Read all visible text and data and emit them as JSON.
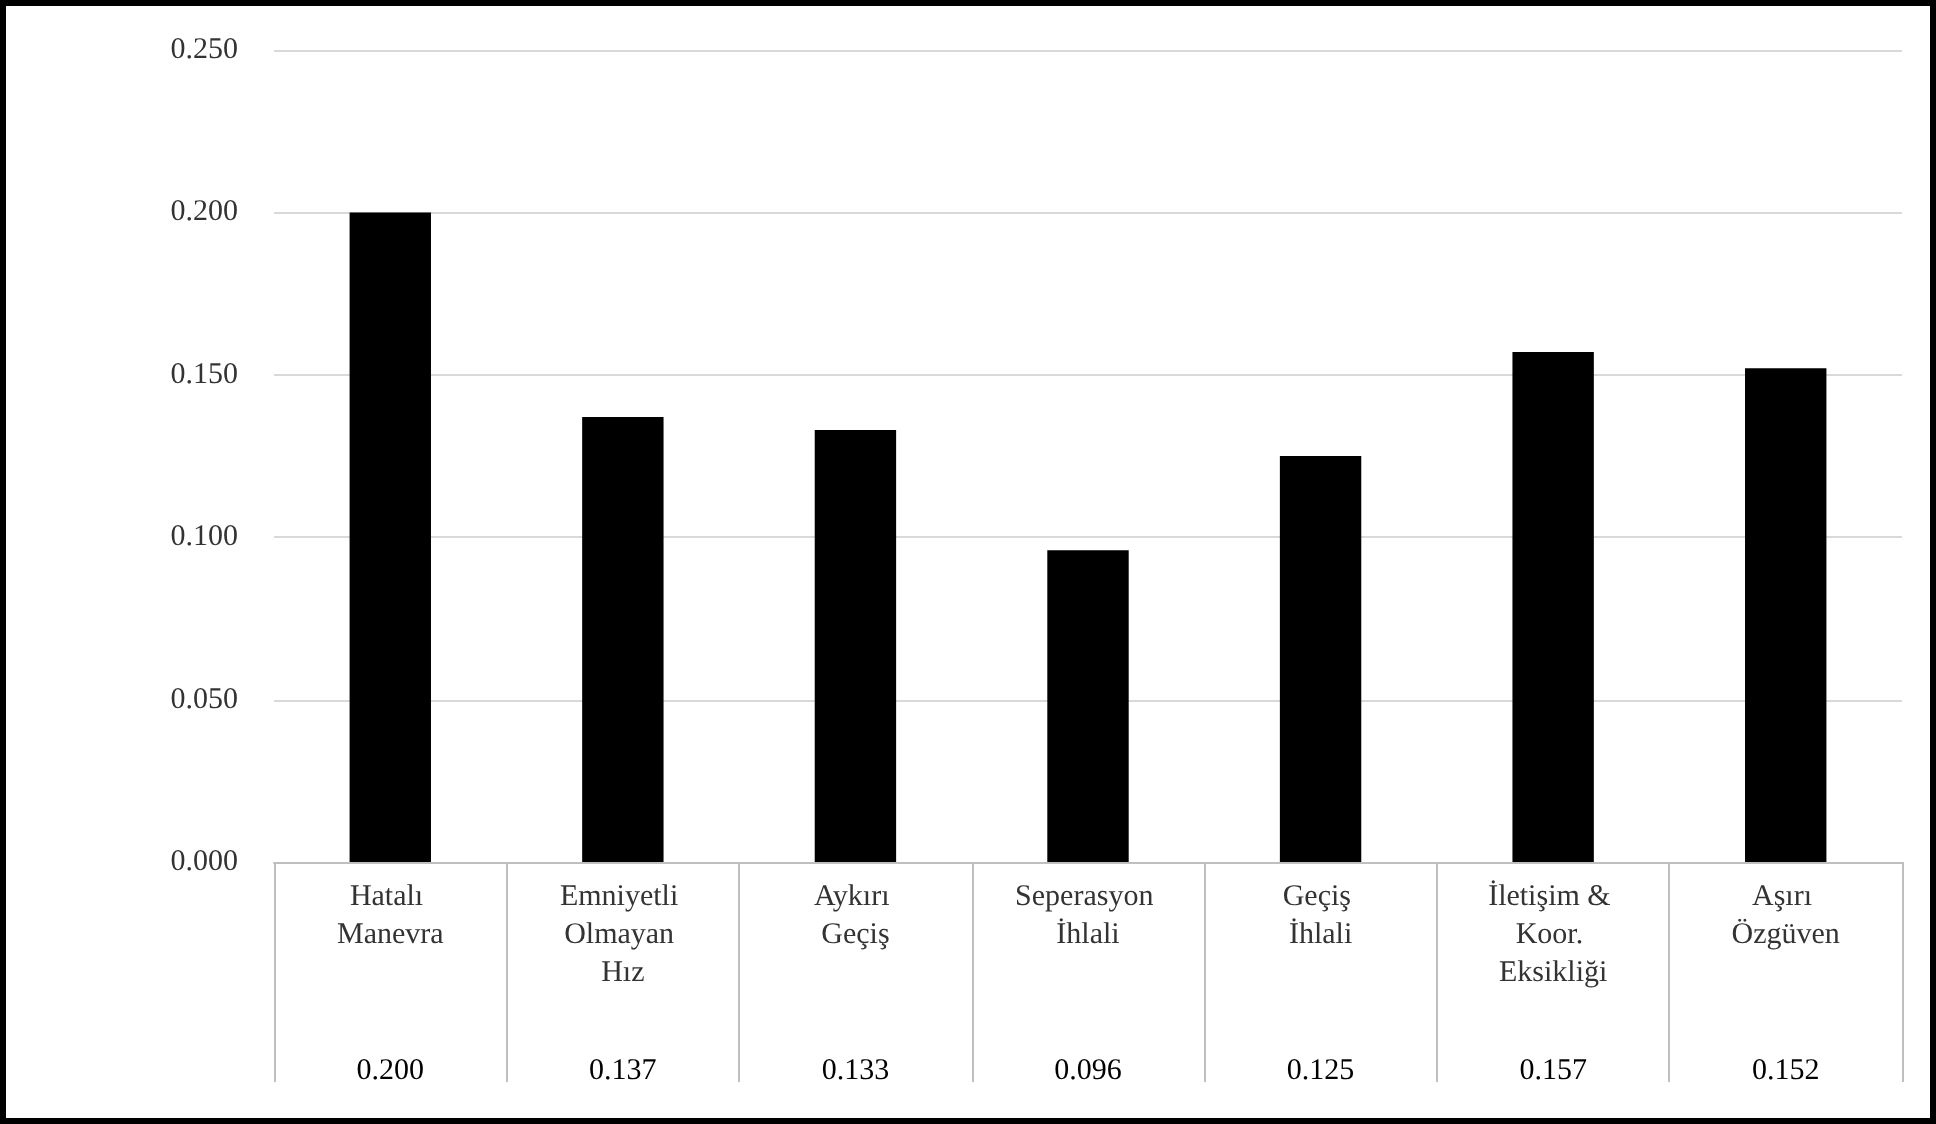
{
  "chart_data": {
    "type": "bar",
    "categories": [
      "Hatalı Manevra",
      "Emniyetli Olmayan Hız",
      "Aykırı Geçiş",
      "Seperasyon İhlali",
      "Geçiş İhlali",
      "İletişim & Koor. Eksikliği",
      "Aşırı Özgüven"
    ],
    "values": [
      0.2,
      0.137,
      0.133,
      0.096,
      0.125,
      0.157,
      0.152
    ],
    "value_labels": [
      "0.200",
      "0.137",
      "0.133",
      "0.096",
      "0.125",
      "0.157",
      "0.152"
    ],
    "color": "#000000",
    "ylim": [
      0,
      0.25
    ],
    "yticks": [
      {
        "value": 0,
        "label": "0.000"
      },
      {
        "value": 0.05,
        "label": "0.050"
      },
      {
        "value": 0.1,
        "label": "0.100"
      },
      {
        "value": 0.15,
        "label": "0.150"
      },
      {
        "value": 0.2,
        "label": "0.200"
      },
      {
        "value": 0.25,
        "label": "0.250"
      }
    ],
    "grid": "y"
  }
}
